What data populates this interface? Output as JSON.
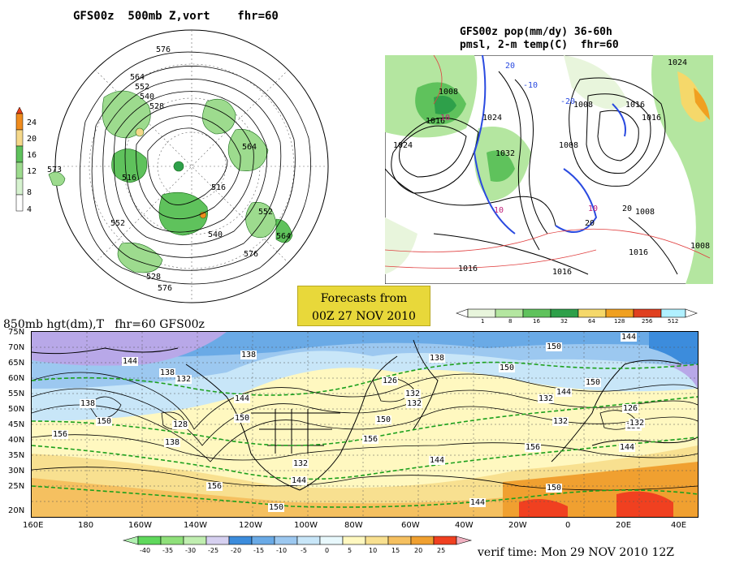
{
  "polar_panel": {
    "title": "GFS00z  500mb Z,vort    fhr=60",
    "scale_labels": [
      "24",
      "20",
      "16",
      "12",
      "8",
      "4"
    ],
    "scale_colors": [
      "#e8401a",
      "#f08c1e",
      "#f5d88a",
      "#5fc25c",
      "#9ddb8e",
      "#d6f2cf"
    ],
    "contour_labels": [
      "576",
      "564",
      "552",
      "540",
      "528",
      "516",
      "564",
      "552",
      "564",
      "576",
      "552",
      "540",
      "528",
      "516",
      "576"
    ],
    "side_label": "573"
  },
  "pmsl_panel": {
    "title_line1": "GFS00z pop(mm/dy) 36-60h",
    "title_line2": "pmsl, 2-m temp(C)  fhr=60",
    "isobar_labels": [
      "1008",
      "1016",
      "1024",
      "1008",
      "1016",
      "1024",
      "1032",
      "1008",
      "1016",
      "1024",
      "1008",
      "1016",
      "1008",
      "1016",
      "1016"
    ],
    "temp_labels": [
      "10",
      "20",
      "-10",
      "-20",
      "10",
      "20",
      "10",
      "20"
    ],
    "precip_scale": [
      "1",
      "8",
      "16",
      "32",
      "64",
      "128",
      "256",
      "512"
    ],
    "precip_colors": [
      "#e8f5dc",
      "#b4e6a0",
      "#5fc25c",
      "#2ea04a",
      "#f5d86a",
      "#f0a020",
      "#e04020",
      "#b0f0ff"
    ]
  },
  "banner": {
    "line1": "Forecasts from",
    "line2": "00Z 27 NOV 2010"
  },
  "map850": {
    "title": "850mb hgt(dm),T   fhr=60 GFS00z",
    "lat_labels": [
      "75N",
      "70N",
      "65N",
      "60N",
      "55N",
      "50N",
      "45N",
      "40N",
      "35N",
      "30N",
      "25N",
      "20N"
    ],
    "lon_labels": [
      "160E",
      "180",
      "160W",
      "140W",
      "120W",
      "100W",
      "80W",
      "60W",
      "40W",
      "20W",
      "0",
      "20E",
      "40E"
    ],
    "height_labels": [
      "144",
      "138",
      "132",
      "138",
      "144",
      "150",
      "156",
      "150",
      "138",
      "132",
      "128",
      "150",
      "144",
      "138",
      "132",
      "126",
      "132",
      "138",
      "150",
      "156",
      "144",
      "156",
      "150",
      "144",
      "132",
      "132",
      "144",
      "150",
      "144",
      "156",
      "150",
      "138",
      "126",
      "132",
      "144",
      "150"
    ],
    "temp_scale_labels": [
      "-40",
      "-35",
      "-30",
      "-25",
      "-20",
      "-15",
      "-10",
      "-5",
      "0",
      "5",
      "10",
      "15",
      "20",
      "25"
    ],
    "temp_scale_colors": [
      "#5fd85c",
      "#8fe07a",
      "#c0eeb0",
      "#d6d0f0",
      "#3c8cdc",
      "#6aaae6",
      "#9cc8f0",
      "#c8e6f8",
      "#e8f8fc",
      "#fff8c0",
      "#f8e090",
      "#f5c060",
      "#f0a030",
      "#f04020"
    ]
  },
  "verif_time": "verif time: Mon 29 NOV 2010 12Z"
}
